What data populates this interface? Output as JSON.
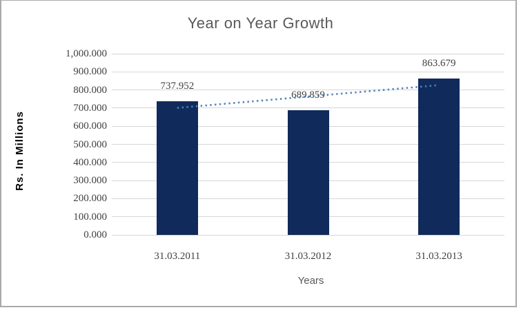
{
  "chart_data": {
    "type": "bar",
    "title": "Year on Year Growth",
    "categories": [
      "31.03.2011",
      "31.03.2012",
      "31.03.2013"
    ],
    "values": [
      737.952,
      689.859,
      863.679
    ],
    "data_labels": [
      "737.952",
      "689.859",
      "863.679"
    ],
    "xlabel": "Years",
    "ylabel": "Rs. In Millions",
    "ylim": [
      0,
      1000
    ],
    "ytick_step": 100,
    "ytick_labels": [
      "0.000",
      "100.000",
      "200.000",
      "300.000",
      "400.000",
      "500.000",
      "600.000",
      "700.000",
      "800.000",
      "900.000",
      "1,000.000"
    ],
    "grid": true,
    "legend_position": "none",
    "bar_color": "#102a5c",
    "trendline": {
      "type": "linear",
      "style": "dotted",
      "color": "#4f81bd"
    },
    "colors": {
      "title_text": "#595959",
      "tick_text": "#3f3f3f",
      "axis_title_text": "#000000",
      "gridline": "#d6d6d6",
      "frame_border": "#a9a9a9",
      "background": "#ffffff"
    }
  }
}
